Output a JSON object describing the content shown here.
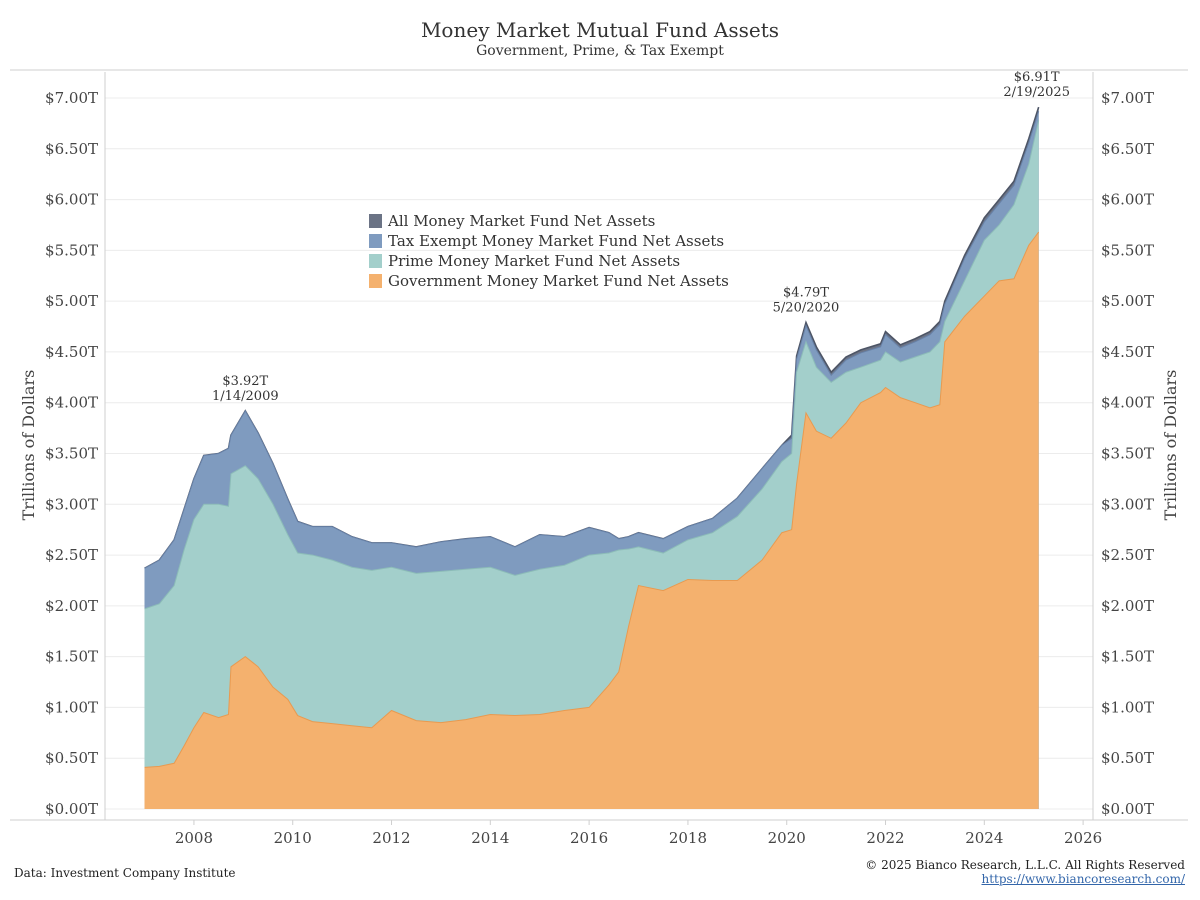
{
  "chart_data": {
    "type": "area",
    "title": "Money Market Mutual Fund Assets",
    "subtitle": "Government, Prime, & Tax Exempt",
    "ylabel_left": "Trillions of Dollars",
    "ylabel_right": "Trillions of Dollars",
    "ylim": [
      0,
      7.0
    ],
    "xlim": [
      2006.2,
      2026.2
    ],
    "y_ticks": [
      {
        "value": 0,
        "label": "$0.00T"
      },
      {
        "value": 0.5,
        "label": "$0.50T"
      },
      {
        "value": 1.0,
        "label": "$1.00T"
      },
      {
        "value": 1.5,
        "label": "$1.50T"
      },
      {
        "value": 2.0,
        "label": "$2.00T"
      },
      {
        "value": 2.5,
        "label": "$2.50T"
      },
      {
        "value": 3.0,
        "label": "$3.00T"
      },
      {
        "value": 3.5,
        "label": "$3.50T"
      },
      {
        "value": 4.0,
        "label": "$4.00T"
      },
      {
        "value": 4.5,
        "label": "$4.50T"
      },
      {
        "value": 5.0,
        "label": "$5.00T"
      },
      {
        "value": 5.5,
        "label": "$5.50T"
      },
      {
        "value": 6.0,
        "label": "$6.00T"
      },
      {
        "value": 6.5,
        "label": "$6.50T"
      },
      {
        "value": 7.0,
        "label": "$7.00T"
      }
    ],
    "x_ticks": [
      {
        "value": 2008,
        "label": "2008"
      },
      {
        "value": 2010,
        "label": "2010"
      },
      {
        "value": 2012,
        "label": "2012"
      },
      {
        "value": 2014,
        "label": "2014"
      },
      {
        "value": 2016,
        "label": "2016"
      },
      {
        "value": 2018,
        "label": "2018"
      },
      {
        "value": 2020,
        "label": "2020"
      },
      {
        "value": 2022,
        "label": "2022"
      },
      {
        "value": 2024,
        "label": "2024"
      },
      {
        "value": 2026,
        "label": "2026"
      }
    ],
    "x": [
      2007.0,
      2007.3,
      2007.6,
      2007.8,
      2008.0,
      2008.2,
      2008.5,
      2008.7,
      2008.75,
      2009.04,
      2009.3,
      2009.6,
      2009.9,
      2010.1,
      2010.4,
      2010.8,
      2011.2,
      2011.6,
      2012.0,
      2012.5,
      2013.0,
      2013.5,
      2014.0,
      2014.5,
      2015.0,
      2015.5,
      2016.0,
      2016.4,
      2016.6,
      2016.8,
      2017.0,
      2017.5,
      2018.0,
      2018.5,
      2019.0,
      2019.5,
      2019.9,
      2020.1,
      2020.2,
      2020.39,
      2020.6,
      2020.9,
      2021.2,
      2021.5,
      2021.9,
      2022.0,
      2022.3,
      2022.6,
      2022.9,
      2023.1,
      2023.2,
      2023.6,
      2024.0,
      2024.3,
      2024.6,
      2024.9,
      2025.1
    ],
    "series": [
      {
        "name": "All Money Market Fund Net Assets",
        "color": "#6b7385",
        "values": [
          2.37,
          2.45,
          2.65,
          2.95,
          3.25,
          3.48,
          3.5,
          3.55,
          3.68,
          3.92,
          3.7,
          3.4,
          3.05,
          2.83,
          2.78,
          2.78,
          2.68,
          2.62,
          2.62,
          2.58,
          2.63,
          2.66,
          2.68,
          2.58,
          2.7,
          2.68,
          2.77,
          2.72,
          2.66,
          2.68,
          2.72,
          2.66,
          2.78,
          2.86,
          3.06,
          3.35,
          3.58,
          3.68,
          4.46,
          4.79,
          4.55,
          4.3,
          4.45,
          4.52,
          4.58,
          4.7,
          4.57,
          4.63,
          4.7,
          4.8,
          5.0,
          5.45,
          5.82,
          6.0,
          6.18,
          6.6,
          6.91
        ]
      },
      {
        "name": "Tax Exempt Money Market Fund Net Assets",
        "color": "#7f9bbf",
        "values": [
          2.37,
          2.45,
          2.65,
          2.95,
          3.25,
          3.48,
          3.5,
          3.55,
          3.68,
          3.92,
          3.7,
          3.4,
          3.05,
          2.83,
          2.78,
          2.78,
          2.68,
          2.62,
          2.62,
          2.58,
          2.63,
          2.66,
          2.68,
          2.58,
          2.7,
          2.68,
          2.77,
          2.72,
          2.66,
          2.68,
          2.72,
          2.66,
          2.78,
          2.86,
          3.06,
          3.35,
          3.58,
          3.65,
          4.43,
          4.76,
          4.52,
          4.27,
          4.42,
          4.49,
          4.55,
          4.67,
          4.54,
          4.6,
          4.67,
          4.77,
          4.97,
          5.42,
          5.78,
          5.96,
          6.14,
          6.56,
          6.87
        ]
      },
      {
        "name": "Prime Money Market Fund Net Assets",
        "color": "#a3cfcb",
        "values": [
          1.97,
          2.02,
          2.2,
          2.55,
          2.85,
          3.0,
          3.0,
          2.98,
          3.3,
          3.38,
          3.25,
          3.0,
          2.7,
          2.52,
          2.5,
          2.45,
          2.38,
          2.35,
          2.38,
          2.32,
          2.34,
          2.36,
          2.38,
          2.3,
          2.36,
          2.4,
          2.5,
          2.52,
          2.55,
          2.56,
          2.58,
          2.52,
          2.65,
          2.72,
          2.88,
          3.15,
          3.42,
          3.5,
          4.3,
          4.6,
          4.35,
          4.2,
          4.3,
          4.35,
          4.42,
          4.5,
          4.4,
          4.45,
          4.5,
          4.6,
          4.8,
          5.2,
          5.6,
          5.75,
          5.95,
          6.35,
          6.78
        ]
      },
      {
        "name": "Government Money Market Fund Net Assets",
        "color": "#f4b16e",
        "values": [
          0.41,
          0.42,
          0.45,
          0.62,
          0.8,
          0.95,
          0.9,
          0.93,
          1.4,
          1.5,
          1.4,
          1.2,
          1.08,
          0.92,
          0.86,
          0.84,
          0.82,
          0.8,
          0.97,
          0.87,
          0.85,
          0.88,
          0.93,
          0.92,
          0.93,
          0.97,
          1.0,
          1.22,
          1.35,
          1.8,
          2.2,
          2.15,
          2.26,
          2.25,
          2.25,
          2.45,
          2.72,
          2.75,
          3.2,
          3.9,
          3.72,
          3.65,
          3.8,
          4.0,
          4.1,
          4.15,
          4.05,
          4.0,
          3.95,
          3.98,
          4.6,
          4.85,
          5.05,
          5.2,
          5.22,
          5.55,
          5.68
        ]
      }
    ],
    "annotations": [
      {
        "x": 2009.04,
        "y": 3.92,
        "value": "$3.92T",
        "date": "1/14/2009"
      },
      {
        "x": 2020.39,
        "y": 4.79,
        "value": "$4.79T",
        "date": "5/20/2020"
      },
      {
        "x": 2025.1,
        "y": 6.91,
        "value": "$6.91T",
        "date": "2/19/2025"
      }
    ],
    "legend_position": "upper-left-center",
    "grid": true
  },
  "footer": {
    "source": "Data: Investment Company Institute",
    "copyright": "© 2025 Bianco Research, L.L.C. All Rights Reserved",
    "url": "https://www.biancoresearch.com/"
  }
}
